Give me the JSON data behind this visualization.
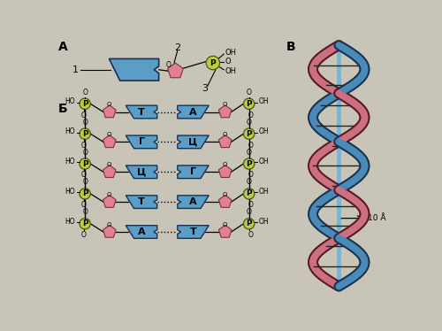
{
  "bg_color": "#c8c4b8",
  "title_A": "А",
  "title_B": "Б",
  "title_C": "В",
  "label1": "1",
  "label2": "2",
  "label3": "3",
  "label_10A": "10 Å",
  "base_pairs": [
    [
      "Т",
      "А"
    ],
    [
      "Г",
      "Ц"
    ],
    [
      "Ц",
      "Г"
    ],
    [
      "Т",
      "А"
    ],
    [
      "А",
      "Т"
    ]
  ],
  "blue_color": "#5a9ec8",
  "pink_color": "#e08090",
  "green_color": "#b8cc44",
  "backbone_blue": "#4a8ab8",
  "backbone_pink": "#cc7080",
  "helix_axis": "#70b8e0"
}
